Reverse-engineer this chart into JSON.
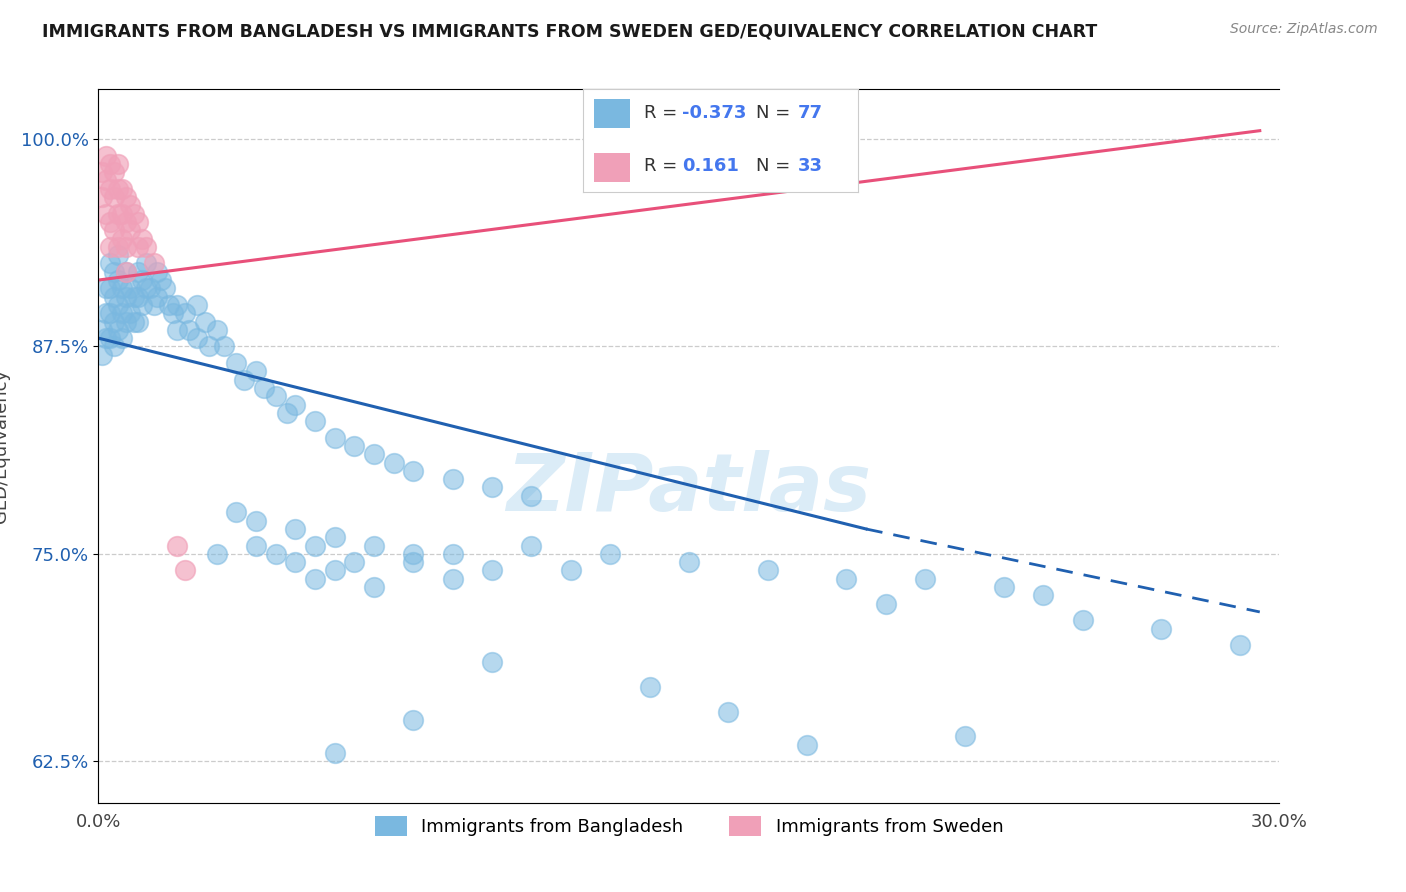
{
  "title": "IMMIGRANTS FROM BANGLADESH VS IMMIGRANTS FROM SWEDEN GED/EQUIVALENCY CORRELATION CHART",
  "source": "Source: ZipAtlas.com",
  "ylabel": "GED/Equivalency",
  "yticks": [
    62.5,
    75.0,
    87.5,
    100.0
  ],
  "xlim": [
    0.0,
    0.3
  ],
  "ylim": [
    60.0,
    103.0
  ],
  "watermark": "ZIPatlas",
  "bg_color": "#ffffff",
  "blue_color": "#7ab8e0",
  "pink_color": "#f0a0b8",
  "blue_line_color": "#2060b0",
  "pink_line_color": "#e8507a",
  "blue_line_solid": [
    [
      0.0,
      88.0
    ],
    [
      0.195,
      76.5
    ]
  ],
  "blue_line_dashed": [
    [
      0.195,
      76.5
    ],
    [
      0.295,
      71.5
    ]
  ],
  "pink_line": [
    [
      0.0,
      91.5
    ],
    [
      0.295,
      100.5
    ]
  ],
  "bangladesh_data": [
    [
      0.001,
      88.5
    ],
    [
      0.001,
      87.0
    ],
    [
      0.002,
      91.0
    ],
    [
      0.002,
      89.5
    ],
    [
      0.002,
      88.0
    ],
    [
      0.003,
      92.5
    ],
    [
      0.003,
      91.0
    ],
    [
      0.003,
      89.5
    ],
    [
      0.003,
      88.0
    ],
    [
      0.004,
      92.0
    ],
    [
      0.004,
      90.5
    ],
    [
      0.004,
      89.0
    ],
    [
      0.004,
      87.5
    ],
    [
      0.005,
      93.0
    ],
    [
      0.005,
      91.5
    ],
    [
      0.005,
      90.0
    ],
    [
      0.005,
      88.5
    ],
    [
      0.006,
      91.0
    ],
    [
      0.006,
      89.5
    ],
    [
      0.006,
      88.0
    ],
    [
      0.007,
      92.0
    ],
    [
      0.007,
      90.5
    ],
    [
      0.007,
      89.0
    ],
    [
      0.008,
      91.0
    ],
    [
      0.008,
      89.5
    ],
    [
      0.009,
      90.5
    ],
    [
      0.009,
      89.0
    ],
    [
      0.01,
      92.0
    ],
    [
      0.01,
      90.5
    ],
    [
      0.01,
      89.0
    ],
    [
      0.011,
      91.5
    ],
    [
      0.011,
      90.0
    ],
    [
      0.012,
      92.5
    ],
    [
      0.012,
      91.0
    ],
    [
      0.013,
      91.0
    ],
    [
      0.014,
      90.0
    ],
    [
      0.015,
      92.0
    ],
    [
      0.015,
      90.5
    ],
    [
      0.016,
      91.5
    ],
    [
      0.017,
      91.0
    ],
    [
      0.018,
      90.0
    ],
    [
      0.019,
      89.5
    ],
    [
      0.02,
      90.0
    ],
    [
      0.02,
      88.5
    ],
    [
      0.022,
      89.5
    ],
    [
      0.023,
      88.5
    ],
    [
      0.025,
      90.0
    ],
    [
      0.025,
      88.0
    ],
    [
      0.027,
      89.0
    ],
    [
      0.028,
      87.5
    ],
    [
      0.03,
      88.5
    ],
    [
      0.032,
      87.5
    ],
    [
      0.035,
      86.5
    ],
    [
      0.037,
      85.5
    ],
    [
      0.04,
      86.0
    ],
    [
      0.042,
      85.0
    ],
    [
      0.045,
      84.5
    ],
    [
      0.048,
      83.5
    ],
    [
      0.05,
      84.0
    ],
    [
      0.055,
      83.0
    ],
    [
      0.06,
      82.0
    ],
    [
      0.065,
      81.5
    ],
    [
      0.07,
      81.0
    ],
    [
      0.075,
      80.5
    ],
    [
      0.08,
      80.0
    ],
    [
      0.09,
      79.5
    ],
    [
      0.1,
      79.0
    ],
    [
      0.11,
      78.5
    ],
    [
      0.035,
      77.5
    ],
    [
      0.04,
      77.0
    ],
    [
      0.05,
      76.5
    ],
    [
      0.06,
      76.0
    ],
    [
      0.07,
      75.5
    ],
    [
      0.08,
      75.0
    ],
    [
      0.09,
      75.0
    ],
    [
      0.11,
      75.5
    ],
    [
      0.05,
      74.5
    ],
    [
      0.06,
      74.0
    ],
    [
      0.08,
      74.5
    ],
    [
      0.1,
      74.0
    ],
    [
      0.03,
      75.0
    ],
    [
      0.045,
      75.0
    ],
    [
      0.055,
      75.5
    ],
    [
      0.065,
      74.5
    ],
    [
      0.055,
      73.5
    ],
    [
      0.07,
      73.0
    ],
    [
      0.09,
      73.5
    ],
    [
      0.04,
      75.5
    ],
    [
      0.13,
      75.0
    ],
    [
      0.15,
      74.5
    ],
    [
      0.17,
      74.0
    ],
    [
      0.19,
      73.5
    ],
    [
      0.12,
      74.0
    ],
    [
      0.1,
      68.5
    ],
    [
      0.14,
      67.0
    ],
    [
      0.16,
      65.5
    ],
    [
      0.08,
      65.0
    ],
    [
      0.06,
      63.0
    ],
    [
      0.18,
      63.5
    ],
    [
      0.22,
      64.0
    ],
    [
      0.2,
      72.0
    ],
    [
      0.21,
      73.5
    ],
    [
      0.24,
      72.5
    ],
    [
      0.25,
      71.0
    ],
    [
      0.23,
      73.0
    ],
    [
      0.27,
      70.5
    ],
    [
      0.29,
      69.5
    ]
  ],
  "sweden_data": [
    [
      0.001,
      98.0
    ],
    [
      0.001,
      96.5
    ],
    [
      0.002,
      99.0
    ],
    [
      0.002,
      97.5
    ],
    [
      0.002,
      95.5
    ],
    [
      0.003,
      98.5
    ],
    [
      0.003,
      97.0
    ],
    [
      0.003,
      95.0
    ],
    [
      0.003,
      93.5
    ],
    [
      0.004,
      98.0
    ],
    [
      0.004,
      96.5
    ],
    [
      0.004,
      94.5
    ],
    [
      0.005,
      98.5
    ],
    [
      0.005,
      97.0
    ],
    [
      0.005,
      95.5
    ],
    [
      0.005,
      93.5
    ],
    [
      0.006,
      97.0
    ],
    [
      0.006,
      95.5
    ],
    [
      0.006,
      94.0
    ],
    [
      0.007,
      96.5
    ],
    [
      0.007,
      95.0
    ],
    [
      0.007,
      93.5
    ],
    [
      0.007,
      92.0
    ],
    [
      0.008,
      96.0
    ],
    [
      0.008,
      94.5
    ],
    [
      0.009,
      95.5
    ],
    [
      0.01,
      95.0
    ],
    [
      0.01,
      93.5
    ],
    [
      0.011,
      94.0
    ],
    [
      0.012,
      93.5
    ],
    [
      0.014,
      92.5
    ],
    [
      0.02,
      75.5
    ],
    [
      0.022,
      74.0
    ]
  ]
}
